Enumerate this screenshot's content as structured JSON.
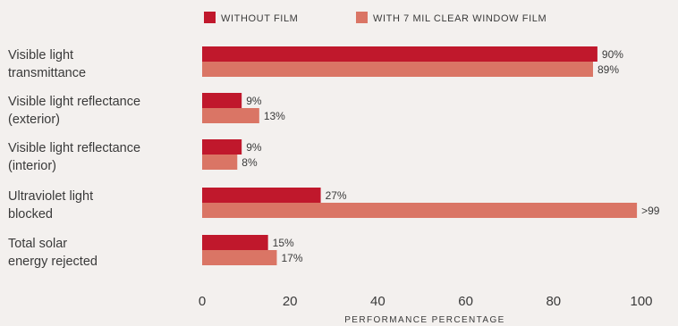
{
  "chart_data": {
    "type": "bar",
    "orientation": "horizontal",
    "title": "",
    "xlabel": "PERFORMANCE PERCENTAGE",
    "ylabel": "",
    "xlim": [
      0,
      100
    ],
    "ticks": [
      0,
      20,
      40,
      60,
      80,
      100
    ],
    "categories": [
      [
        "Visible light",
        "transmittance"
      ],
      [
        "Visible light reflectance",
        "(exterior)"
      ],
      [
        "Visible light reflectance",
        "(interior)"
      ],
      [
        "Ultraviolet light",
        "blocked"
      ],
      [
        "Total solar",
        "energy rejected"
      ]
    ],
    "series": [
      {
        "name": "WITHOUT FILM",
        "color": "#c0182c",
        "values": [
          90,
          9,
          9,
          27,
          15
        ],
        "labels": [
          "90%",
          "9%",
          "9%",
          "27%",
          "15%"
        ]
      },
      {
        "name": "WITH 7 MIL CLEAR WINDOW FILM",
        "color": "#da7565",
        "values": [
          89,
          13,
          8,
          99,
          17
        ],
        "labels": [
          "89%",
          "13%",
          "8%",
          ">99",
          "17%"
        ]
      }
    ],
    "legend": "top",
    "grid": false
  }
}
